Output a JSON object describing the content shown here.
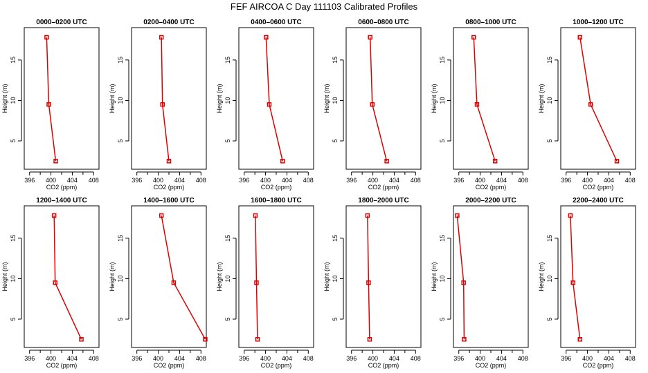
{
  "figure_title": "FEF AIRCOA C  Day 111103  Calibrated Profiles",
  "colors": {
    "series": "#dd0000",
    "axis": "#000000"
  },
  "chart_data": [
    {
      "type": "line",
      "title": "0000–0200 UTC",
      "xlabel": "CO2 (ppm)",
      "ylabel": "Height (m)",
      "xlim": [
        395,
        409
      ],
      "ylim": [
        1.5,
        19
      ],
      "xticks": [
        "396",
        "400",
        "404",
        "408"
      ],
      "yticks": [
        "5",
        "10",
        "15"
      ],
      "x": [
        399.2,
        399.6,
        400.9
      ],
      "y": [
        17.8,
        9.5,
        2.5
      ]
    },
    {
      "type": "line",
      "title": "0200–0400 UTC",
      "xlabel": "CO2 (ppm)",
      "ylabel": "Height (m)",
      "xlim": [
        395,
        409
      ],
      "ylim": [
        1.5,
        19
      ],
      "xticks": [
        "396",
        "400",
        "404",
        "408"
      ],
      "yticks": [
        "5",
        "10",
        "15"
      ],
      "x": [
        400.6,
        400.8,
        402.0
      ],
      "y": [
        17.8,
        9.5,
        2.5
      ]
    },
    {
      "type": "line",
      "title": "0400–0600 UTC",
      "xlabel": "CO2 (ppm)",
      "ylabel": "Height (m)",
      "xlim": [
        395,
        409
      ],
      "ylim": [
        1.5,
        19
      ],
      "xticks": [
        "396",
        "400",
        "404",
        "408"
      ],
      "yticks": [
        "5",
        "10",
        "15"
      ],
      "x": [
        400.1,
        400.7,
        403.2
      ],
      "y": [
        17.8,
        9.5,
        2.5
      ]
    },
    {
      "type": "line",
      "title": "0600–0800 UTC",
      "xlabel": "CO2 (ppm)",
      "ylabel": "Height (m)",
      "xlim": [
        395,
        409
      ],
      "ylim": [
        1.5,
        19
      ],
      "xticks": [
        "396",
        "400",
        "404",
        "408"
      ],
      "yticks": [
        "5",
        "10",
        "15"
      ],
      "x": [
        399.5,
        399.9,
        402.6
      ],
      "y": [
        17.8,
        9.5,
        2.5
      ]
    },
    {
      "type": "line",
      "title": "0800–1000 UTC",
      "xlabel": "CO2 (ppm)",
      "ylabel": "Height (m)",
      "xlim": [
        395,
        409
      ],
      "ylim": [
        1.5,
        19
      ],
      "xticks": [
        "396",
        "400",
        "404",
        "408"
      ],
      "yticks": [
        "5",
        "10",
        "15"
      ],
      "x": [
        398.8,
        399.4,
        402.8
      ],
      "y": [
        17.8,
        9.5,
        2.5
      ]
    },
    {
      "type": "line",
      "title": "1000–1200 UTC",
      "xlabel": "CO2 (ppm)",
      "ylabel": "Height (m)",
      "xlim": [
        395,
        409
      ],
      "ylim": [
        1.5,
        19
      ],
      "xticks": [
        "396",
        "400",
        "404",
        "408"
      ],
      "yticks": [
        "5",
        "10",
        "15"
      ],
      "x": [
        398.6,
        400.6,
        405.5
      ],
      "y": [
        17.8,
        9.5,
        2.5
      ]
    },
    {
      "type": "line",
      "title": "1200–1400 UTC",
      "xlabel": "CO2 (ppm)",
      "ylabel": "Height (m)",
      "xlim": [
        395,
        409
      ],
      "ylim": [
        1.5,
        19
      ],
      "xticks": [
        "396",
        "400",
        "404",
        "408"
      ],
      "yticks": [
        "5",
        "10",
        "15"
      ],
      "x": [
        400.6,
        400.8,
        405.7
      ],
      "y": [
        17.8,
        9.5,
        2.5
      ]
    },
    {
      "type": "line",
      "title": "1400–1600 UTC",
      "xlabel": "CO2 (ppm)",
      "ylabel": "Height (m)",
      "xlim": [
        395,
        409
      ],
      "ylim": [
        1.5,
        19
      ],
      "xticks": [
        "396",
        "400",
        "404",
        "408"
      ],
      "yticks": [
        "5",
        "10",
        "15"
      ],
      "x": [
        400.6,
        402.9,
        408.8
      ],
      "y": [
        17.8,
        9.5,
        2.5
      ]
    },
    {
      "type": "line",
      "title": "1600–1800 UTC",
      "xlabel": "CO2 (ppm)",
      "ylabel": "Height (m)",
      "xlim": [
        395,
        409
      ],
      "ylim": [
        1.5,
        19
      ],
      "xticks": [
        "396",
        "400",
        "404",
        "408"
      ],
      "yticks": [
        "5",
        "10",
        "15"
      ],
      "x": [
        398.1,
        398.3,
        398.5
      ],
      "y": [
        17.8,
        9.5,
        2.5
      ]
    },
    {
      "type": "line",
      "title": "1800–2000 UTC",
      "xlabel": "CO2 (ppm)",
      "ylabel": "Height (m)",
      "xlim": [
        395,
        409
      ],
      "ylim": [
        1.5,
        19
      ],
      "xticks": [
        "396",
        "400",
        "404",
        "408"
      ],
      "yticks": [
        "5",
        "10",
        "15"
      ],
      "x": [
        399.0,
        399.2,
        399.4
      ],
      "y": [
        17.8,
        9.5,
        2.5
      ]
    },
    {
      "type": "line",
      "title": "2000–2200 UTC",
      "xlabel": "CO2 (ppm)",
      "ylabel": "Height (m)",
      "xlim": [
        395,
        409
      ],
      "ylim": [
        1.5,
        19
      ],
      "xticks": [
        "396",
        "400",
        "404",
        "408"
      ],
      "yticks": [
        "5",
        "10",
        "15"
      ],
      "x": [
        395.7,
        396.9,
        397.0
      ],
      "y": [
        17.8,
        9.5,
        2.5
      ]
    },
    {
      "type": "line",
      "title": "2200–2400 UTC",
      "xlabel": "CO2 (ppm)",
      "ylabel": "Height (m)",
      "xlim": [
        395,
        409
      ],
      "ylim": [
        1.5,
        19
      ],
      "xticks": [
        "396",
        "400",
        "404",
        "408"
      ],
      "yticks": [
        "5",
        "10",
        "15"
      ],
      "x": [
        396.8,
        397.3,
        398.6
      ],
      "y": [
        17.8,
        9.5,
        2.5
      ]
    }
  ]
}
